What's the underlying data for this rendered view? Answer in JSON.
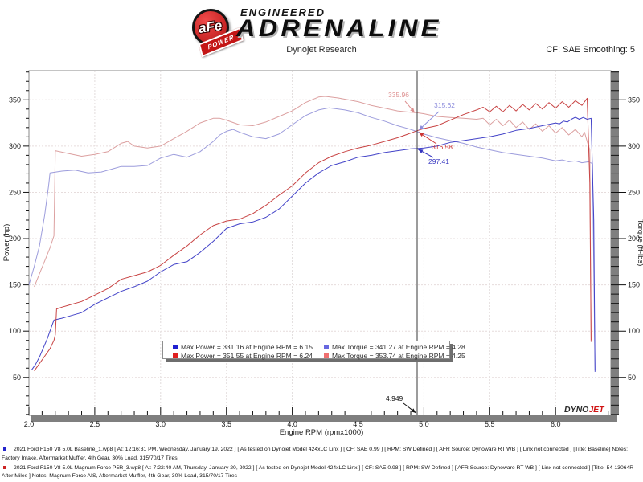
{
  "header": {
    "logo": {
      "circle_text": "aFe",
      "ribbon_text": "POWER",
      "line1": "ENGINEERED",
      "line2": "ADRENALINE"
    },
    "subtitle": "Dynojet Research",
    "smoothing_label": "CF: SAE Smoothing: 5"
  },
  "chart_data": {
    "type": "line",
    "title": "",
    "xlabel": "Engine RPM (rpmx1000)",
    "ylabel_left": "Power (hp)",
    "ylabel_right": "Torque (ft-lbs)",
    "xlim": [
      2.0,
      6.42
    ],
    "ylim": [
      9,
      381.5
    ],
    "x_major_ticks": [
      2.0,
      2.5,
      3.0,
      3.5,
      4.0,
      4.5,
      5.0,
      5.5,
      6.0
    ],
    "y_major_ticks": [
      50,
      100,
      150,
      200,
      250,
      300,
      350
    ],
    "grid": "dashed",
    "legend_position": "bottom-center-overlay",
    "cursor": {
      "rpm": 4.949,
      "label": "4.949"
    },
    "legend": [
      {
        "color": "#2020d0",
        "text": "Max Power = 331.16 at Engine RPM = 6.15"
      },
      {
        "color": "#6868e0",
        "text": "Max Torque = 341.27 at Engine RPM = 4.28"
      },
      {
        "color": "#e02020",
        "text": "Max Power = 351.55 at Engine RPM = 6.24"
      },
      {
        "color": "#f07070",
        "text": "Max Torque = 353.74 at Engine RPM = 4.25"
      }
    ],
    "annotations": [
      {
        "label": "335.96",
        "value": 335.96,
        "series": "magnum-torque",
        "color": "#dd8f8f"
      },
      {
        "label": "315.62",
        "value": 315.62,
        "series": "baseline-torque",
        "color": "#8c8cdc"
      },
      {
        "label": "316.58",
        "value": 316.58,
        "series": "magnum-power",
        "color": "#cc3434"
      },
      {
        "label": "297.41",
        "value": 297.41,
        "series": "baseline-power",
        "color": "#3434c0"
      }
    ],
    "series": [
      {
        "name": "baseline-torque",
        "color": "#9c9cdc",
        "points": [
          [
            2.0,
            150
          ],
          [
            2.04,
            170
          ],
          [
            2.08,
            192
          ],
          [
            2.12,
            226
          ],
          [
            2.15,
            258
          ],
          [
            2.16,
            271
          ],
          [
            2.25,
            273
          ],
          [
            2.35,
            274
          ],
          [
            2.45,
            271
          ],
          [
            2.55,
            272
          ],
          [
            2.65,
            276
          ],
          [
            2.7,
            278
          ],
          [
            2.8,
            278
          ],
          [
            2.9,
            279
          ],
          [
            3.0,
            287
          ],
          [
            3.1,
            291
          ],
          [
            3.2,
            288
          ],
          [
            3.3,
            294
          ],
          [
            3.4,
            305
          ],
          [
            3.45,
            312
          ],
          [
            3.5,
            316
          ],
          [
            3.55,
            318
          ],
          [
            3.6,
            315
          ],
          [
            3.7,
            310
          ],
          [
            3.8,
            308
          ],
          [
            3.9,
            313
          ],
          [
            4.0,
            323
          ],
          [
            4.1,
            333
          ],
          [
            4.2,
            339
          ],
          [
            4.28,
            341.3
          ],
          [
            4.4,
            339
          ],
          [
            4.5,
            336
          ],
          [
            4.6,
            331
          ],
          [
            4.7,
            327
          ],
          [
            4.8,
            322
          ],
          [
            4.9,
            318
          ],
          [
            4.949,
            315.6
          ],
          [
            5.0,
            313
          ],
          [
            5.1,
            309
          ],
          [
            5.2,
            306
          ],
          [
            5.3,
            303
          ],
          [
            5.4,
            299
          ],
          [
            5.5,
            296
          ],
          [
            5.6,
            293
          ],
          [
            5.7,
            291
          ],
          [
            5.8,
            289
          ],
          [
            5.9,
            287
          ],
          [
            6.0,
            284
          ],
          [
            6.05,
            285
          ],
          [
            6.1,
            283
          ],
          [
            6.15,
            284
          ],
          [
            6.2,
            282
          ],
          [
            6.25,
            283
          ],
          [
            6.28,
            281
          ],
          [
            6.3,
            58
          ]
        ]
      },
      {
        "name": "magnum-torque",
        "color": "#dca0a0",
        "points": [
          [
            2.04,
            148
          ],
          [
            2.08,
            162
          ],
          [
            2.12,
            176
          ],
          [
            2.16,
            190
          ],
          [
            2.19,
            203
          ],
          [
            2.2,
            295
          ],
          [
            2.3,
            292
          ],
          [
            2.4,
            289
          ],
          [
            2.5,
            291
          ],
          [
            2.6,
            294
          ],
          [
            2.7,
            303
          ],
          [
            2.75,
            305
          ],
          [
            2.8,
            300
          ],
          [
            2.9,
            298
          ],
          [
            3.0,
            300
          ],
          [
            3.1,
            308
          ],
          [
            3.2,
            316
          ],
          [
            3.3,
            325
          ],
          [
            3.4,
            330
          ],
          [
            3.45,
            330
          ],
          [
            3.5,
            328
          ],
          [
            3.6,
            323
          ],
          [
            3.7,
            322
          ],
          [
            3.8,
            326
          ],
          [
            3.9,
            332
          ],
          [
            4.0,
            338
          ],
          [
            4.1,
            347
          ],
          [
            4.2,
            353
          ],
          [
            4.25,
            353.7
          ],
          [
            4.35,
            352
          ],
          [
            4.5,
            348
          ],
          [
            4.6,
            344
          ],
          [
            4.7,
            341
          ],
          [
            4.8,
            338
          ],
          [
            4.9,
            336.5
          ],
          [
            4.949,
            336
          ],
          [
            5.0,
            335
          ],
          [
            5.1,
            332
          ],
          [
            5.2,
            331
          ],
          [
            5.3,
            330
          ],
          [
            5.4,
            329
          ],
          [
            5.45,
            330
          ],
          [
            5.5,
            323
          ],
          [
            5.55,
            329
          ],
          [
            5.6,
            322
          ],
          [
            5.65,
            328
          ],
          [
            5.7,
            320
          ],
          [
            5.75,
            326
          ],
          [
            5.8,
            318
          ],
          [
            5.85,
            324
          ],
          [
            5.9,
            316
          ],
          [
            5.95,
            322
          ],
          [
            6.0,
            314
          ],
          [
            6.05,
            320
          ],
          [
            6.1,
            312
          ],
          [
            6.15,
            318
          ],
          [
            6.2,
            310
          ],
          [
            6.22,
            315
          ],
          [
            6.24,
            305
          ],
          [
            6.26,
            296
          ],
          [
            6.27,
            88
          ]
        ]
      },
      {
        "name": "baseline-power",
        "color": "#4343c8",
        "points": [
          [
            2.02,
            58
          ],
          [
            2.05,
            64
          ],
          [
            2.08,
            72
          ],
          [
            2.11,
            82
          ],
          [
            2.14,
            92
          ],
          [
            2.17,
            104
          ],
          [
            2.19,
            112
          ],
          [
            2.25,
            114
          ],
          [
            2.3,
            116
          ],
          [
            2.4,
            120
          ],
          [
            2.5,
            129
          ],
          [
            2.6,
            136
          ],
          [
            2.7,
            143
          ],
          [
            2.8,
            148
          ],
          [
            2.9,
            154
          ],
          [
            3.0,
            164
          ],
          [
            3.1,
            172
          ],
          [
            3.2,
            175
          ],
          [
            3.3,
            185
          ],
          [
            3.4,
            197
          ],
          [
            3.5,
            211
          ],
          [
            3.6,
            216
          ],
          [
            3.7,
            218
          ],
          [
            3.8,
            223
          ],
          [
            3.9,
            232
          ],
          [
            4.0,
            246
          ],
          [
            4.1,
            260
          ],
          [
            4.2,
            271
          ],
          [
            4.3,
            279
          ],
          [
            4.4,
            283
          ],
          [
            4.5,
            288
          ],
          [
            4.6,
            290
          ],
          [
            4.7,
            293
          ],
          [
            4.8,
            295
          ],
          [
            4.9,
            297
          ],
          [
            4.949,
            297.4
          ],
          [
            5.0,
            298
          ],
          [
            5.1,
            300
          ],
          [
            5.2,
            304
          ],
          [
            5.3,
            306
          ],
          [
            5.4,
            308
          ],
          [
            5.5,
            310
          ],
          [
            5.6,
            313
          ],
          [
            5.7,
            317
          ],
          [
            5.8,
            319
          ],
          [
            5.9,
            322
          ],
          [
            6.0,
            325
          ],
          [
            6.03,
            324
          ],
          [
            6.06,
            327
          ],
          [
            6.09,
            326
          ],
          [
            6.12,
            329
          ],
          [
            6.15,
            331.2
          ],
          [
            6.18,
            329
          ],
          [
            6.21,
            331
          ],
          [
            6.24,
            329
          ],
          [
            6.27,
            330
          ],
          [
            6.29,
            220
          ],
          [
            6.3,
            56
          ]
        ]
      },
      {
        "name": "magnum-power",
        "color": "#c84343",
        "points": [
          [
            2.04,
            57
          ],
          [
            2.07,
            63
          ],
          [
            2.1,
            69
          ],
          [
            2.13,
            75
          ],
          [
            2.16,
            81
          ],
          [
            2.19,
            90
          ],
          [
            2.2,
            96
          ],
          [
            2.21,
            124
          ],
          [
            2.25,
            126
          ],
          [
            2.3,
            128
          ],
          [
            2.4,
            132
          ],
          [
            2.5,
            139
          ],
          [
            2.6,
            146
          ],
          [
            2.7,
            156
          ],
          [
            2.8,
            160
          ],
          [
            2.9,
            164
          ],
          [
            3.0,
            171
          ],
          [
            3.1,
            182
          ],
          [
            3.2,
            192
          ],
          [
            3.3,
            204
          ],
          [
            3.4,
            214
          ],
          [
            3.5,
            219
          ],
          [
            3.6,
            221
          ],
          [
            3.7,
            227
          ],
          [
            3.8,
            236
          ],
          [
            3.9,
            247
          ],
          [
            4.0,
            257
          ],
          [
            4.1,
            271
          ],
          [
            4.2,
            282
          ],
          [
            4.3,
            289
          ],
          [
            4.4,
            294
          ],
          [
            4.5,
            298
          ],
          [
            4.6,
            301
          ],
          [
            4.7,
            305
          ],
          [
            4.8,
            309
          ],
          [
            4.9,
            314
          ],
          [
            4.949,
            316.6
          ],
          [
            5.0,
            319
          ],
          [
            5.1,
            322
          ],
          [
            5.2,
            328
          ],
          [
            5.3,
            334
          ],
          [
            5.4,
            339
          ],
          [
            5.45,
            342
          ],
          [
            5.5,
            337
          ],
          [
            5.55,
            343
          ],
          [
            5.6,
            337
          ],
          [
            5.65,
            344
          ],
          [
            5.7,
            338
          ],
          [
            5.75,
            345
          ],
          [
            5.8,
            339
          ],
          [
            5.85,
            346
          ],
          [
            5.9,
            340
          ],
          [
            5.95,
            347
          ],
          [
            6.0,
            341
          ],
          [
            6.05,
            348
          ],
          [
            6.1,
            342
          ],
          [
            6.15,
            349
          ],
          [
            6.2,
            344
          ],
          [
            6.24,
            351.6
          ],
          [
            6.26,
            260
          ],
          [
            6.27,
            90
          ]
        ]
      }
    ]
  },
  "footer": {
    "runs": [
      {
        "bullet_color": "#2424cc",
        "text": "2021 Ford F150 V8 5.0L Baseline_1.wp8 [ At: 12:16:31 PM, Wednesday, January 19, 2022 ] [ As tested on Dynojet Model 424xLC Linx ] [ CF: SAE 0.99 ] [ RPM: SW Defined ] [ AFR Source: Dynoware RT WB ] [ Linx not connected ] [Title: Baseline]  Notes: Factory Intake, Aftermarket Muffler, 4th Gear, 30% Load, 315/70/17 Tires"
      },
      {
        "bullet_color": "#cc2424",
        "text": "2021 Ford F150 V8 5.0L Magnum Force P5R_3.wp8 [ At: 7:22:40 AM, Thursday, January 20, 2022 ] [ As tested on Dynojet Model 424xLC Linx ] [ CF: SAE 0.98 ] [ RPM: SW Defined ] [ AFR Source: Dynoware RT WB ] [ Linx not connected ] [Title: 54-13064R After Miles ]  Notes: Magnum Force AIS, Aftermarket Muffler, 4th Gear, 30% Load, 315/70/17 Tires"
      }
    ],
    "dynojet_logo": {
      "part1": "DYNO",
      "part2": "JET"
    }
  }
}
